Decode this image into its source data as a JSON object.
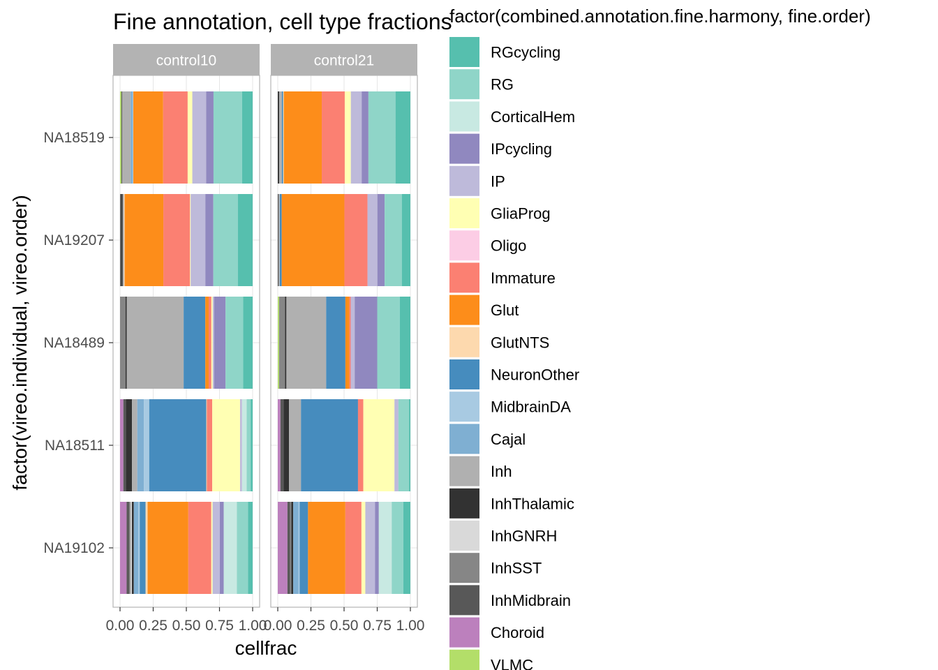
{
  "chart_data": {
    "type": "bar",
    "orientation": "horizontal",
    "stacked": true,
    "title": "Fine annotation, cell type fractions",
    "xlabel": "cellfrac",
    "ylabel": "factor(vireo.individual, vireo.order)",
    "xlim": [
      0,
      1
    ],
    "x_ticks": [
      "0.00",
      "0.25",
      "0.50",
      "0.75",
      "1.00"
    ],
    "x_tick_values": [
      0,
      0.25,
      0.5,
      0.75,
      1.0
    ],
    "categories": [
      "NA18519",
      "NA19207",
      "NA18489",
      "NA18511",
      "NA19102"
    ],
    "legend_title": "factor(combined.annotation.fine.harmony, fine.order)",
    "legend_placement": "right",
    "grid": true,
    "series": [
      {
        "name": "VLMC",
        "color": "#B3DE69"
      },
      {
        "name": "Choroid",
        "color": "#BC80BD"
      },
      {
        "name": "InhMidbrain",
        "color": "#585858"
      },
      {
        "name": "InhSST",
        "color": "#868686"
      },
      {
        "name": "InhGNRH",
        "color": "#D9D9D9"
      },
      {
        "name": "InhThalamic",
        "color": "#323232"
      },
      {
        "name": "Inh",
        "color": "#B0B0B0"
      },
      {
        "name": "Cajal",
        "color": "#7FAFD2"
      },
      {
        "name": "MidbrainDA",
        "color": "#A8CAE2"
      },
      {
        "name": "NeuronOther",
        "color": "#468CBE"
      },
      {
        "name": "GlutNTS",
        "color": "#FDD9AE"
      },
      {
        "name": "Glut",
        "color": "#FD8D1A"
      },
      {
        "name": "Immature",
        "color": "#FB8072"
      },
      {
        "name": "Oligo",
        "color": "#FCCDE5"
      },
      {
        "name": "GliaProg",
        "color": "#FFFFB3"
      },
      {
        "name": "IP",
        "color": "#BEBADA"
      },
      {
        "name": "IPcycling",
        "color": "#9088BF"
      },
      {
        "name": "CorticalHem",
        "color": "#C8E9E2"
      },
      {
        "name": "RG",
        "color": "#8FD5C8"
      },
      {
        "name": "RGcycling",
        "color": "#56BFAE"
      }
    ],
    "facets": [
      {
        "label": "control10",
        "rows": [
          {
            "category": "NA18519",
            "values": {
              "VLMC": 0.01,
              "Choroid": 0.0,
              "InhMidbrain": 0.0,
              "InhSST": 0.0,
              "InhGNRH": 0.0,
              "InhThalamic": 0.005,
              "Inh": 0.065,
              "Cajal": 0.015,
              "MidbrainDA": 0.005,
              "NeuronOther": 0.0,
              "GlutNTS": 0.0,
              "Glut": 0.225,
              "Immature": 0.185,
              "Oligo": 0.0,
              "GliaProg": 0.035,
              "IP": 0.105,
              "IPcycling": 0.055,
              "CorticalHem": 0.0,
              "RG": 0.215,
              "RGcycling": 0.08
            }
          },
          {
            "category": "NA19207",
            "values": {
              "VLMC": 0.0,
              "Choroid": 0.0,
              "InhMidbrain": 0.01,
              "InhSST": 0.0,
              "InhGNRH": 0.0,
              "InhThalamic": 0.01,
              "Inh": 0.01,
              "Cajal": 0.0,
              "MidbrainDA": 0.0,
              "NeuronOther": 0.0,
              "GlutNTS": 0.005,
              "Glut": 0.29,
              "Immature": 0.2,
              "Oligo": 0.0,
              "GliaProg": 0.005,
              "IP": 0.11,
              "IPcycling": 0.06,
              "CorticalHem": 0.0,
              "RG": 0.185,
              "RGcycling": 0.11
            }
          },
          {
            "category": "NA18489",
            "values": {
              "VLMC": 0.0,
              "Choroid": 0.0,
              "InhMidbrain": 0.0,
              "InhSST": 0.04,
              "InhGNRH": 0.0,
              "InhThalamic": 0.01,
              "Inh": 0.42,
              "Cajal": 0.0,
              "MidbrainDA": 0.0,
              "NeuronOther": 0.16,
              "GlutNTS": 0.0,
              "Glut": 0.025,
              "Immature": 0.02,
              "Oligo": 0.0,
              "GliaProg": 0.01,
              "IP": 0.01,
              "IPcycling": 0.085,
              "CorticalHem": 0.0,
              "RG": 0.13,
              "RGcycling": 0.07
            }
          },
          {
            "category": "NA18511",
            "values": {
              "VLMC": 0.0,
              "Choroid": 0.025,
              "InhMidbrain": 0.02,
              "InhSST": 0.0,
              "InhGNRH": 0.0,
              "InhThalamic": 0.045,
              "Inh": 0.04,
              "Cajal": 0.05,
              "MidbrainDA": 0.04,
              "NeuronOther": 0.43,
              "GlutNTS": 0.005,
              "Glut": 0.0,
              "Immature": 0.04,
              "Oligo": 0.0,
              "GliaProg": 0.21,
              "IP": 0.015,
              "IPcycling": 0.0,
              "CorticalHem": 0.035,
              "RG": 0.03,
              "RGcycling": 0.015
            }
          },
          {
            "category": "NA19102",
            "values": {
              "VLMC": 0.0,
              "Choroid": 0.05,
              "InhMidbrain": 0.02,
              "InhSST": 0.01,
              "InhGNRH": 0.01,
              "InhThalamic": 0.015,
              "Inh": 0.0,
              "Cajal": 0.035,
              "MidbrainDA": 0.01,
              "NeuronOther": 0.045,
              "GlutNTS": 0.015,
              "Glut": 0.31,
              "Immature": 0.175,
              "Oligo": 0.0,
              "GliaProg": 0.01,
              "IP": 0.055,
              "IPcycling": 0.03,
              "CorticalHem": 0.1,
              "RG": 0.085,
              "RGcycling": 0.035
            }
          }
        ]
      },
      {
        "label": "control21",
        "rows": [
          {
            "category": "NA18519",
            "values": {
              "VLMC": 0.0,
              "Choroid": 0.0,
              "InhMidbrain": 0.0,
              "InhSST": 0.0,
              "InhGNRH": 0.0,
              "InhThalamic": 0.01,
              "Inh": 0.02,
              "Cajal": 0.0,
              "MidbrainDA": 0.0,
              "NeuronOther": 0.01,
              "GlutNTS": 0.005,
              "Glut": 0.28,
              "Immature": 0.17,
              "Oligo": 0.0,
              "GliaProg": 0.045,
              "IP": 0.08,
              "IPcycling": 0.05,
              "CorticalHem": 0.0,
              "RG": 0.2,
              "RGcycling": 0.11
            }
          },
          {
            "category": "NA19207",
            "values": {
              "VLMC": 0.0,
              "Choroid": 0.0,
              "InhMidbrain": 0.0,
              "InhSST": 0.0,
              "InhGNRH": 0.0,
              "InhThalamic": 0.005,
              "Inh": 0.01,
              "Cajal": 0.0,
              "MidbrainDA": 0.0,
              "NeuronOther": 0.015,
              "GlutNTS": 0.0,
              "Glut": 0.475,
              "Immature": 0.175,
              "Oligo": 0.0,
              "GliaProg": 0.0,
              "IP": 0.075,
              "IPcycling": 0.055,
              "CorticalHem": 0.0,
              "RG": 0.13,
              "RGcycling": 0.065
            }
          },
          {
            "category": "NA18489",
            "values": {
              "VLMC": 0.01,
              "Choroid": 0.0,
              "InhMidbrain": 0.0,
              "InhSST": 0.045,
              "InhGNRH": 0.0,
              "InhThalamic": 0.01,
              "Inh": 0.3,
              "Cajal": 0.0,
              "MidbrainDA": 0.0,
              "NeuronOther": 0.145,
              "GlutNTS": 0.0,
              "Glut": 0.03,
              "Immature": 0.01,
              "Oligo": 0.0,
              "GliaProg": 0.0,
              "IP": 0.03,
              "IPcycling": 0.17,
              "CorticalHem": 0.0,
              "RG": 0.17,
              "RGcycling": 0.08
            }
          },
          {
            "category": "NA18511",
            "values": {
              "VLMC": 0.0,
              "Choroid": 0.02,
              "InhMidbrain": 0.025,
              "InhSST": 0.0,
              "InhGNRH": 0.0,
              "InhThalamic": 0.04,
              "Inh": 0.09,
              "Cajal": 0.0,
              "MidbrainDA": 0.0,
              "NeuronOther": 0.43,
              "GlutNTS": 0.0,
              "Glut": 0.0,
              "Immature": 0.04,
              "Oligo": 0.0,
              "GliaProg": 0.235,
              "IP": 0.03,
              "IPcycling": 0.0,
              "CorticalHem": 0.0,
              "RG": 0.08,
              "RGcycling": 0.01
            }
          },
          {
            "category": "NA19102",
            "values": {
              "VLMC": 0.0,
              "Choroid": 0.075,
              "InhMidbrain": 0.02,
              "InhSST": 0.01,
              "InhGNRH": 0.0,
              "InhThalamic": 0.015,
              "Inh": 0.0,
              "Cajal": 0.04,
              "MidbrainDA": 0.01,
              "NeuronOther": 0.065,
              "GlutNTS": 0.0,
              "Glut": 0.29,
              "Immature": 0.125,
              "Oligo": 0.0,
              "GliaProg": 0.03,
              "IP": 0.075,
              "IPcycling": 0.03,
              "CorticalHem": 0.1,
              "RG": 0.09,
              "RGcycling": 0.055
            }
          }
        ]
      }
    ]
  },
  "legend_items": [
    {
      "name": "RGcycling",
      "color": "#56BFAE"
    },
    {
      "name": "RG",
      "color": "#8FD5C8"
    },
    {
      "name": "CorticalHem",
      "color": "#C8E9E2"
    },
    {
      "name": "IPcycling",
      "color": "#9088BF"
    },
    {
      "name": "IP",
      "color": "#BEBADA"
    },
    {
      "name": "GliaProg",
      "color": "#FFFFB3"
    },
    {
      "name": "Oligo",
      "color": "#FCCDE5"
    },
    {
      "name": "Immature",
      "color": "#FB8072"
    },
    {
      "name": "Glut",
      "color": "#FD8D1A"
    },
    {
      "name": "GlutNTS",
      "color": "#FDD9AE"
    },
    {
      "name": "NeuronOther",
      "color": "#468CBE"
    },
    {
      "name": "MidbrainDA",
      "color": "#A8CAE2"
    },
    {
      "name": "Cajal",
      "color": "#7FAFD2"
    },
    {
      "name": "Inh",
      "color": "#B0B0B0"
    },
    {
      "name": "InhThalamic",
      "color": "#323232"
    },
    {
      "name": "InhGNRH",
      "color": "#D9D9D9"
    },
    {
      "name": "InhSST",
      "color": "#868686"
    },
    {
      "name": "InhMidbrain",
      "color": "#585858"
    },
    {
      "name": "Choroid",
      "color": "#BC80BD"
    },
    {
      "name": "VLMC",
      "color": "#B3DE69"
    }
  ],
  "colors": {
    "strip_bg": "#B3B3B3",
    "strip_text": "#FFFFFF",
    "panel_border": "#B3B3B3",
    "grid": "#E6E6E6",
    "axis_text": "#4D4D4D"
  }
}
